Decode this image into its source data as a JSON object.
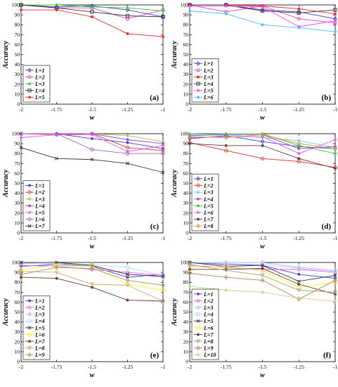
{
  "chart_data": [
    {
      "type": "line",
      "panel_label": "(a)",
      "xlabel": "w",
      "ylabel": "Accuracy",
      "x": [
        -2,
        -1.75,
        -1.5,
        -1.25,
        -1
      ],
      "xtick_labels": [
        "-2",
        "-1.75",
        "-1.5",
        "-1.25",
        "-1"
      ],
      "xlim": [
        -2,
        -1
      ],
      "ylim": [
        0,
        100
      ],
      "yticks": [
        0,
        10,
        20,
        30,
        40,
        50,
        60,
        70,
        80,
        90,
        100
      ],
      "legend_position": "bottom-left",
      "series": [
        {
          "name": "L=1",
          "color": "#3b3bd6",
          "marker": "diamond",
          "values": [
            100,
            98,
            99,
            95,
            88
          ]
        },
        {
          "name": "L=2",
          "color": "#e040c0",
          "marker": "circle",
          "values": [
            100,
            97,
            97,
            86,
            95
          ]
        },
        {
          "name": "L=3",
          "color": "#33cc33",
          "marker": "star",
          "values": [
            100,
            100,
            98,
            97,
            94
          ]
        },
        {
          "name": "L=4",
          "color": "#333333",
          "marker": "square",
          "values": [
            100,
            97,
            93,
            89,
            88
          ]
        },
        {
          "name": "L=5",
          "color": "#ee2222",
          "marker": "star",
          "values": [
            95,
            95,
            88,
            71,
            68
          ]
        }
      ]
    },
    {
      "type": "line",
      "panel_label": "(b)",
      "xlabel": "w",
      "ylabel": "Accuracy",
      "x": [
        -2,
        -1.75,
        -1.5,
        -1.25,
        -1
      ],
      "xtick_labels": [
        "-2",
        "-1.75",
        "-1.5",
        "-1.25",
        "-1"
      ],
      "xlim": [
        -2,
        -1
      ],
      "ylim": [
        0,
        100
      ],
      "yticks": [
        0,
        10,
        20,
        30,
        40,
        50,
        60,
        70,
        80,
        90,
        100
      ],
      "legend_position": "bottom-left",
      "series": [
        {
          "name": "L=1",
          "color": "#3b3bd6",
          "marker": "diamond",
          "values": [
            100,
            100,
            95,
            93,
            86
          ]
        },
        {
          "name": "L=2",
          "color": "#e040c0",
          "marker": "circle",
          "values": [
            100,
            93,
            99,
            86,
            82
          ]
        },
        {
          "name": "L=3",
          "color": "#ee2222",
          "marker": "star",
          "values": [
            100,
            100,
            99,
            96,
            91
          ]
        },
        {
          "name": "L=4",
          "color": "#333333",
          "marker": "square",
          "values": [
            100,
            100,
            94,
            92,
            95
          ]
        },
        {
          "name": "L=5",
          "color": "#ff44ff",
          "marker": "star",
          "values": [
            99,
            99,
            98,
            78,
            84
          ]
        },
        {
          "name": "L=6",
          "color": "#4db8ff",
          "marker": "star",
          "values": [
            94,
            91,
            80,
            77,
            73
          ]
        }
      ]
    },
    {
      "type": "line",
      "panel_label": "(c)",
      "xlabel": "w",
      "ylabel": "Accuracy",
      "x": [
        -2,
        -1.75,
        -1.5,
        -1.25,
        -1
      ],
      "xtick_labels": [
        "-2",
        "-1.75",
        "-1.5",
        "-1.25",
        "-1"
      ],
      "xlim": [
        -2,
        -1
      ],
      "ylim": [
        0,
        100
      ],
      "yticks": [
        0,
        10,
        20,
        30,
        40,
        50,
        60,
        70,
        80,
        90,
        100
      ],
      "legend_position": "bottom-left",
      "series": [
        {
          "name": "L=1",
          "color": "#3b3bd6",
          "marker": "star",
          "values": [
            100,
            100,
            95,
            91,
            85
          ]
        },
        {
          "name": "L=2",
          "color": "#ee3333",
          "marker": "circle",
          "values": [
            100,
            99,
            100,
            86,
            83
          ]
        },
        {
          "name": "L=3",
          "color": "#99cc55",
          "marker": "star",
          "values": [
            100,
            100,
            100,
            98,
            92
          ]
        },
        {
          "name": "L=4",
          "color": "#9944cc",
          "marker": "star",
          "values": [
            100,
            100,
            100,
            94,
            90
          ]
        },
        {
          "name": "L=5",
          "color": "#ee55ee",
          "marker": "star",
          "values": [
            96,
            99,
            99,
            82,
            88
          ]
        },
        {
          "name": "L=6",
          "color": "#9966cc",
          "marker": "circle",
          "values": [
            100,
            100,
            84,
            80,
            80
          ]
        },
        {
          "name": "L=7",
          "color": "#333333",
          "marker": "x",
          "values": [
            86,
            75,
            74,
            70,
            61
          ]
        }
      ]
    },
    {
      "type": "line",
      "panel_label": "(d)",
      "xlabel": "w",
      "ylabel": "Accuracy",
      "x": [
        -2,
        -1.75,
        -1.5,
        -1.25,
        -1
      ],
      "xtick_labels": [
        "-2",
        "-1.75",
        "-1.5",
        "-1.25",
        "-1"
      ],
      "xlim": [
        -2,
        -1
      ],
      "ylim": [
        0,
        100
      ],
      "yticks": [
        0,
        10,
        20,
        30,
        40,
        50,
        60,
        70,
        80,
        90,
        100
      ],
      "legend_position": "bottom-left",
      "series": [
        {
          "name": "L=1",
          "color": "#3b3bd6",
          "marker": "diamond",
          "values": [
            95,
            98,
            92,
            87,
            85
          ]
        },
        {
          "name": "L=2",
          "color": "#ee3333",
          "marker": "circle",
          "values": [
            91,
            83,
            75,
            72,
            66
          ]
        },
        {
          "name": "L=3",
          "color": "#66ccff",
          "marker": "star",
          "values": [
            100,
            99,
            96,
            93,
            86
          ]
        },
        {
          "name": "L=4",
          "color": "#9944cc",
          "marker": "star",
          "values": [
            98,
            99,
            99,
            85,
            87
          ]
        },
        {
          "name": "L=5",
          "color": "#33cc33",
          "marker": "star",
          "values": [
            99,
            100,
            100,
            88,
            80
          ]
        },
        {
          "name": "L=6",
          "color": "#ee55ee",
          "marker": "star",
          "values": [
            96,
            97,
            97,
            80,
            94
          ]
        },
        {
          "name": "L=7",
          "color": "#663333",
          "marker": "star",
          "values": [
            90,
            88,
            88,
            75,
            65
          ]
        },
        {
          "name": "L=8",
          "color": "#cc9933",
          "marker": "diamond",
          "values": [
            97,
            96,
            99,
            90,
            85
          ]
        }
      ]
    },
    {
      "type": "line",
      "panel_label": "(e)",
      "xlabel": "w",
      "ylabel": "Accuracy",
      "x": [
        -2,
        -1.75,
        -1.5,
        -1.25,
        -1
      ],
      "xtick_labels": [
        "-2",
        "-1.75",
        "-1.5",
        "-1.25",
        "-1"
      ],
      "xlim": [
        -2,
        -1
      ],
      "ylim": [
        0,
        100
      ],
      "yticks": [
        0,
        10,
        20,
        30,
        40,
        50,
        60,
        70,
        80,
        90,
        100
      ],
      "legend_position": "bottom-left",
      "series": [
        {
          "name": "L=1",
          "color": "#3b3bd6",
          "marker": "star",
          "values": [
            96,
            98,
            96,
            85,
            88
          ]
        },
        {
          "name": "L=2",
          "color": "#ee55ee",
          "marker": "circle",
          "values": [
            97,
            96,
            93,
            90,
            87
          ]
        },
        {
          "name": "L=3",
          "color": "#ccaaee",
          "marker": "diamond",
          "values": [
            99,
            99,
            97,
            88,
            85
          ]
        },
        {
          "name": "L=4",
          "color": "#aaddff",
          "marker": "square",
          "values": [
            100,
            98,
            98,
            95,
            87
          ]
        },
        {
          "name": "L=5",
          "color": "#333333",
          "marker": "x",
          "values": [
            100,
            100,
            97,
            88,
            86
          ]
        },
        {
          "name": "L=6",
          "color": "#ffee33",
          "marker": "square",
          "values": [
            93,
            97,
            96,
            78,
            72
          ]
        },
        {
          "name": "L=7",
          "color": "#663333",
          "marker": "star",
          "values": [
            85,
            84,
            75,
            62,
            61
          ]
        },
        {
          "name": "L=8",
          "color": "#ccaa66",
          "marker": "triangle",
          "values": [
            91,
            90,
            78,
            77,
            61
          ]
        },
        {
          "name": "L=9",
          "color": "#999966",
          "marker": "diamond",
          "values": [
            88,
            95,
            94,
            82,
            77
          ]
        }
      ]
    },
    {
      "type": "line",
      "panel_label": "(f)",
      "xlabel": "w",
      "ylabel": "Accuracy",
      "x": [
        -2,
        -1.75,
        -1.5,
        -1.25,
        -1
      ],
      "xtick_labels": [
        "-2",
        "-1.75",
        "-1.5",
        "-1.25",
        "-1"
      ],
      "xlim": [
        -2,
        -1
      ],
      "ylim": [
        0,
        100
      ],
      "yticks": [
        0,
        10,
        20,
        30,
        40,
        50,
        60,
        70,
        80,
        90,
        100
      ],
      "legend_position": "bottom-left",
      "series": [
        {
          "name": "L=1",
          "color": "#3b3bd6",
          "marker": "star",
          "values": [
            100,
            98,
            97,
            88,
            84
          ]
        },
        {
          "name": "L=2",
          "color": "#ee55ee",
          "marker": "circle",
          "values": [
            97,
            95,
            93,
            93,
            90
          ]
        },
        {
          "name": "L=3",
          "color": "#ccaaee",
          "marker": "diamond",
          "values": [
            100,
            100,
            100,
            95,
            92
          ]
        },
        {
          "name": "L=4",
          "color": "#aaddff",
          "marker": "square",
          "values": [
            100,
            99,
            98,
            94,
            91
          ]
        },
        {
          "name": "L=5",
          "color": "#333333",
          "marker": "x",
          "values": [
            100,
            96,
            97,
            81,
            87
          ]
        },
        {
          "name": "L=6",
          "color": "#ffee33",
          "marker": "square",
          "values": [
            95,
            96,
            92,
            75,
            80
          ]
        },
        {
          "name": "L=7",
          "color": "#663333",
          "marker": "star",
          "values": [
            93,
            93,
            94,
            78,
            68
          ]
        },
        {
          "name": "L=8",
          "color": "#99aa66",
          "marker": "triangle",
          "values": [
            98,
            92,
            87,
            72,
            70
          ]
        },
        {
          "name": "L=9",
          "color": "#aa8855",
          "marker": "diamond",
          "values": [
            89,
            85,
            82,
            63,
            82
          ]
        },
        {
          "name": "L=10",
          "color": "#cccc88",
          "marker": "star",
          "values": [
            76,
            72,
            70,
            64,
            61
          ]
        }
      ]
    }
  ]
}
